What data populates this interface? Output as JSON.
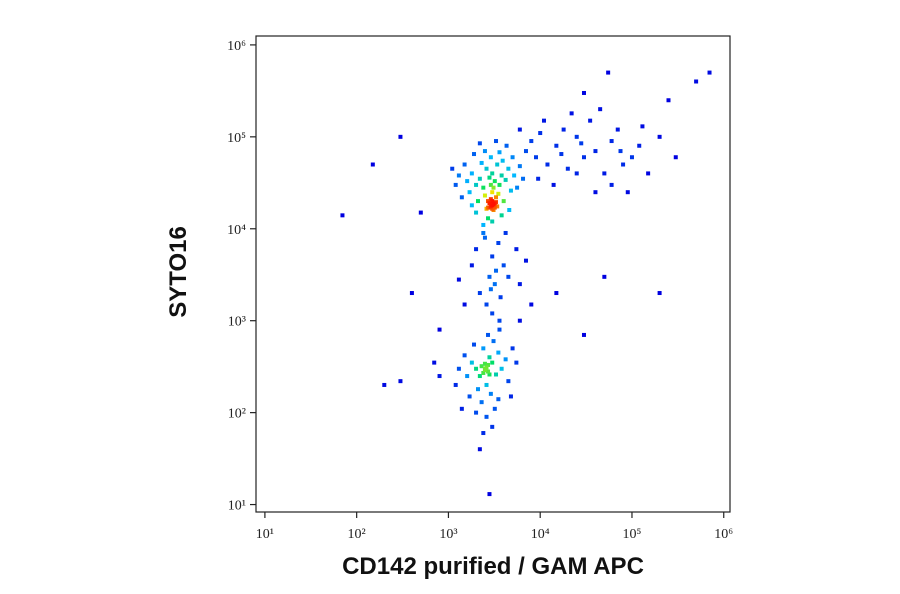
{
  "chart_data": {
    "type": "scatter",
    "xlabel": "CD142 purified / GAM APC",
    "ylabel": "SYTO16",
    "xscale": "log",
    "yscale": "log",
    "xlim": [
      8,
      1170000
    ],
    "ylim": [
      8.3,
      1250000
    ],
    "xticks": [
      {
        "value": 10,
        "label": "10¹"
      },
      {
        "value": 100,
        "label": "10²"
      },
      {
        "value": 1000,
        "label": "10³"
      },
      {
        "value": 10000,
        "label": "10⁴"
      },
      {
        "value": 100000,
        "label": "10⁵"
      },
      {
        "value": 1000000,
        "label": "10⁶"
      }
    ],
    "yticks": [
      {
        "value": 10,
        "label": "10¹"
      },
      {
        "value": 100,
        "label": "10²"
      },
      {
        "value": 1000,
        "label": "10³"
      },
      {
        "value": 10000,
        "label": "10⁴"
      },
      {
        "value": 100000,
        "label": "10⁵"
      },
      {
        "value": 1000000,
        "label": "10⁶"
      }
    ],
    "colormap": [
      "#0000e0",
      "#00b8ff",
      "#00e060",
      "#f0f000",
      "#ff1000"
    ],
    "x": [
      3000,
      2800,
      3200,
      3100,
      2900,
      3300,
      2700,
      3000,
      3400,
      2600,
      3100,
      2900,
      3500,
      2500,
      3200,
      2800,
      3600,
      2400,
      3000,
      2200,
      3800,
      2600,
      3400,
      2000,
      4200,
      2300,
      3900,
      1800,
      4500,
      2900,
      1700,
      4800,
      2100,
      4000,
      1600,
      5200,
      2500,
      3600,
      1500,
      5000,
      2000,
      3800,
      2700,
      1400,
      5600,
      1300,
      6000,
      2200,
      3300,
      4300,
      1900,
      1200,
      6500,
      3000,
      1800,
      4600,
      1100,
      7000,
      2400,
      2900,
      3100,
      3000,
      2800,
      3200,
      3000,
      2700,
      3300,
      9000,
      12000,
      15000,
      20000,
      25000,
      30000,
      40000,
      50000,
      60000,
      35000,
      18000,
      80000,
      100000,
      70000,
      45000,
      25000,
      14000,
      120000,
      150000,
      200000,
      10000,
      8000,
      60000,
      90000,
      30000,
      22000,
      55000,
      300000,
      500000,
      700000,
      250000,
      11000,
      40000,
      130000,
      17000,
      75000,
      28000,
      6000,
      9500,
      2500,
      3500,
      3000,
      2000,
      4000,
      2800,
      3200,
      2200,
      3700,
      2600,
      3000,
      4500,
      1800,
      5500,
      2400,
      3300,
      6000,
      1500,
      4200,
      2900,
      7000,
      1300,
      8000,
      3600,
      2500,
      2700,
      2300,
      3000,
      2200,
      2800,
      2000,
      3300,
      2600,
      3500,
      1800,
      2400,
      3800,
      1600,
      4200,
      2100,
      3100,
      1500,
      2900,
      4500,
      1300,
      2700,
      1900,
      3600,
      5000,
      1200,
      2300,
      3200,
      2600,
      2000,
      3000,
      2400,
      3500,
      4800,
      1700,
      800,
      700,
      5500,
      6000,
      2800,
      2200,
      1400,
      2500,
      2600,
      2400,
      2700,
      2500,
      2800,
      70,
      200,
      300,
      400,
      150,
      300,
      500,
      800,
      15000,
      30000,
      50000,
      200000
    ],
    "values": [
      18000,
      17000,
      19000,
      16000,
      21000,
      22000,
      20000,
      25000,
      17500,
      16500,
      28000,
      30000,
      24000,
      23000,
      33000,
      36000,
      30000,
      28000,
      40000,
      35000,
      38000,
      45000,
      50000,
      30000,
      34000,
      52000,
      55000,
      40000,
      45000,
      60000,
      25000,
      26000,
      20000,
      20000,
      33000,
      38000,
      70000,
      68000,
      50000,
      60000,
      15000,
      14000,
      13000,
      22000,
      28000,
      38000,
      48000,
      85000,
      90000,
      80000,
      65000,
      30000,
      35000,
      12000,
      18000,
      16000,
      45000,
      70000,
      11000,
      17500,
      18500,
      16500,
      19000,
      17000,
      20000,
      17000,
      19500,
      60000,
      50000,
      80000,
      45000,
      100000,
      60000,
      70000,
      40000,
      90000,
      150000,
      120000,
      50000,
      60000,
      120000,
      200000,
      40000,
      30000,
      80000,
      40000,
      100000,
      110000,
      90000,
      30000,
      25000,
      300000,
      180000,
      500000,
      60000,
      400000,
      500000,
      250000,
      150000,
      25000,
      130000,
      65000,
      70000,
      85000,
      120000,
      35000,
      8000,
      7000,
      5000,
      6000,
      4000,
      3000,
      2500,
      2000,
      1800,
      1500,
      1200,
      3000,
      4000,
      6000,
      9000,
      3500,
      2500,
      1500,
      9000,
      2200,
      4500,
      2800,
      1500,
      1000,
      300,
      280,
      320,
      350,
      250,
      400,
      300,
      260,
      200,
      450,
      350,
      500,
      300,
      250,
      380,
      180,
      600,
      420,
      160,
      220,
      300,
      700,
      550,
      800,
      500,
      200,
      130,
      110,
      90,
      100,
      70,
      60,
      140,
      150,
      150,
      250,
      350,
      350,
      1000,
      13,
      40,
      110,
      290,
      310,
      270,
      330,
      340,
      260,
      14000,
      200,
      220,
      2000,
      50000,
      100000,
      15000,
      800,
      2000,
      700,
      3000,
      2000
    ]
  }
}
